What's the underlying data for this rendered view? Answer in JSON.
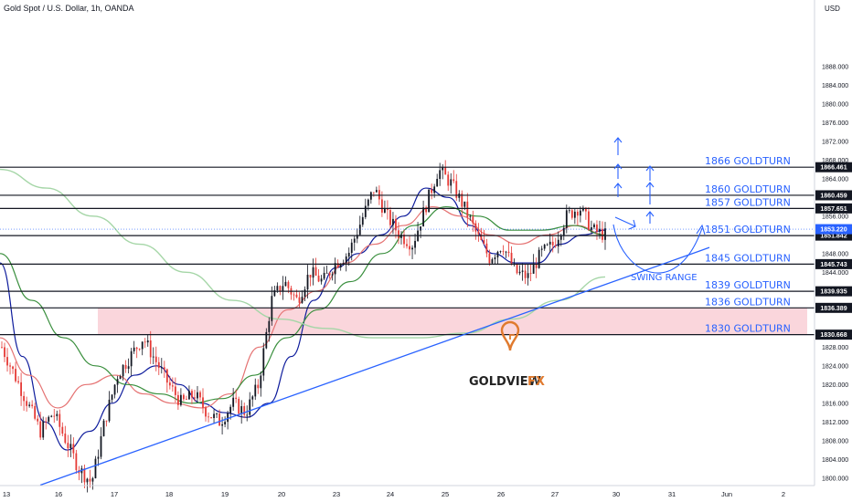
{
  "header": {
    "title": "Gold Spot / U.S. Dollar, 1h, OANDA",
    "currency": "USD"
  },
  "watermark": {
    "brand": "GOLDVIEW",
    "suffix": "FX",
    "logo_icon": "location-pin-g-icon"
  },
  "colors": {
    "level_line": "#131722",
    "label_text": "#2962ff",
    "trendline": "#2962ff",
    "zone_fill": "#f8c8d0",
    "candle_up": "#131722",
    "candle_down": "#e53935",
    "ema_blue": "#0d1b9c",
    "ma_red": "#e57373",
    "ma_green": "#388e3c",
    "ma_lightgreen": "#a5d6a7",
    "current_price_tag": "#2962ff"
  },
  "chart_data": {
    "type": "candlestick",
    "title": "Gold Spot / U.S. Dollar, 1h, OANDA",
    "ylim": [
      1798,
      1892
    ],
    "y_ticks": [
      "1888.000",
      "1884.000",
      "1880.000",
      "1876.000",
      "1872.000",
      "1868.000",
      "1864.000",
      "1856.000",
      "1848.000",
      "1844.000",
      "1828.000",
      "1824.000",
      "1820.000",
      "1816.000",
      "1812.000",
      "1808.000",
      "1804.000",
      "1800.000"
    ],
    "x_ticks": [
      "13",
      "16",
      "17",
      "18",
      "19",
      "20",
      "23",
      "24",
      "25",
      "26",
      "27",
      "30",
      "31",
      "Jun",
      "2"
    ],
    "levels": [
      {
        "price": 1866.461,
        "price_label": "1866.461",
        "label": "1866 GOLDTURN"
      },
      {
        "price": 1860.459,
        "price_label": "1860.459",
        "label": "1860 GOLDTURN"
      },
      {
        "price": 1857.651,
        "price_label": "1857.651",
        "label": "1857 GOLDTURN"
      },
      {
        "price": 1851.842,
        "price_label": "1851.842",
        "label": "1851 GOLDTURN"
      },
      {
        "price": 1845.743,
        "price_label": "1845.743",
        "label": "1845 GOLDTURN"
      },
      {
        "price": 1839.935,
        "price_label": "1839.935",
        "label": "1839 GOLDTURN"
      },
      {
        "price": 1836.389,
        "price_label": "1836.389",
        "label": "1836 GOLDTURN"
      },
      {
        "price": 1830.668,
        "price_label": "1830.668",
        "label": "1830 GOLDTURN"
      }
    ],
    "current_price": {
      "price": 1853.22,
      "label": "1853.220"
    },
    "zone": {
      "from": 1830.668,
      "to": 1836.389
    },
    "annotation": "SWING RANGE",
    "close_path": [
      1828,
      1822,
      1816,
      1810,
      1814,
      1808,
      1802,
      1799,
      1812,
      1822,
      1826,
      1830,
      1825,
      1820,
      1816,
      1818,
      1814,
      1812,
      1816,
      1814,
      1820,
      1838,
      1842,
      1838,
      1844,
      1842,
      1846,
      1848,
      1855,
      1862,
      1856,
      1852,
      1850,
      1858,
      1866,
      1863,
      1858,
      1852,
      1847,
      1850,
      1844,
      1843,
      1848,
      1850,
      1856,
      1858,
      1853,
      1852
    ],
    "emas": [
      {
        "name": "",
        "color": "#0d1b9c",
        "values": [
          1846,
          1826,
          1812,
          1806,
          1810,
          1816,
          1822,
          1824,
          1820,
          1816,
          1814,
          1813,
          1816,
          1826,
          1838,
          1845,
          1848,
          1852,
          1856,
          1862,
          1860,
          1854,
          1848,
          1846,
          1846,
          1850,
          1852,
          1853
        ]
      },
      {
        "name": "",
        "color": "#e57373",
        "values": [
          1830,
          1822,
          1815,
          1820,
          1822,
          1818,
          1816,
          1815,
          1818,
          1828,
          1836,
          1840,
          1846,
          1850,
          1854,
          1858,
          1856,
          1852,
          1850,
          1852,
          1854,
          1852
        ]
      },
      {
        "name": "",
        "color": "#388e3c",
        "values": [
          1848,
          1838,
          1830,
          1824,
          1820,
          1818,
          1816,
          1817,
          1822,
          1830,
          1836,
          1842,
          1848,
          1854,
          1858,
          1856,
          1853,
          1853,
          1854,
          1852
        ]
      },
      {
        "name": "",
        "color": "#a5d6a7",
        "values": [
          1866,
          1862,
          1856,
          1850,
          1844,
          1838,
          1834,
          1832,
          1830,
          1830,
          1831,
          1834,
          1838,
          1843
        ]
      }
    ]
  }
}
